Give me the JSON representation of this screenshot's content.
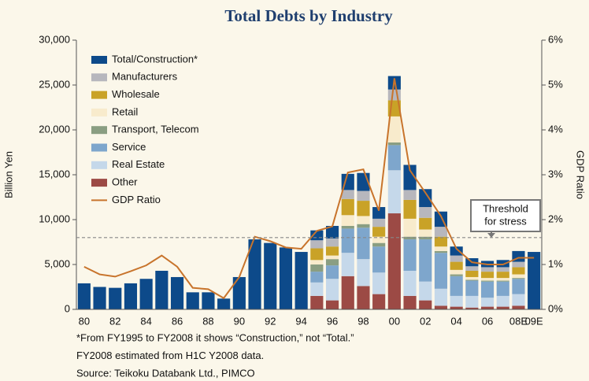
{
  "chart_data": {
    "type": "stacked_bar",
    "title": "Total Debts by Industry",
    "y_label": "Billion Yen",
    "y2_label": "GDP Ratio",
    "categories": [
      "80",
      null,
      "82",
      null,
      "84",
      null,
      "86",
      null,
      "88",
      null,
      "90",
      null,
      "92",
      null,
      "94",
      null,
      "96",
      null,
      "98",
      null,
      "00",
      null,
      "02",
      null,
      "04",
      null,
      "06",
      null,
      "08E",
      "09E"
    ],
    "series": [
      {
        "name": "Total/Construction*",
        "color": "#0d4a8a",
        "values": [
          2900,
          2500,
          2400,
          2900,
          3400,
          4300,
          3600,
          1900,
          1900,
          1200,
          3600,
          7800,
          7400,
          6900,
          6400,
          1100,
          1400,
          1800,
          2000,
          1300,
          1500,
          2800,
          2000,
          1700,
          1000,
          900,
          700,
          800,
          1200,
          6400
        ]
      },
      {
        "name": "Manufacturers",
        "color": "#b7b7bd",
        "values": [
          null,
          null,
          null,
          null,
          null,
          null,
          null,
          null,
          null,
          null,
          null,
          null,
          null,
          null,
          null,
          900,
          900,
          1000,
          1100,
          900,
          1200,
          1100,
          1200,
          1100,
          700,
          500,
          500,
          500,
          600,
          null
        ]
      },
      {
        "name": "Wholesale",
        "color": "#c9a227",
        "values": [
          null,
          null,
          null,
          null,
          null,
          null,
          null,
          null,
          null,
          null,
          null,
          null,
          null,
          null,
          null,
          1300,
          1000,
          1800,
          1700,
          1100,
          1800,
          2100,
          1300,
          1100,
          900,
          700,
          700,
          700,
          800,
          null
        ]
      },
      {
        "name": "Retail",
        "color": "#f8ebcc",
        "values": [
          null,
          null,
          null,
          null,
          null,
          null,
          null,
          null,
          null,
          null,
          null,
          null,
          null,
          null,
          null,
          500,
          400,
          1200,
          900,
          700,
          2900,
          2000,
          800,
          500,
          500,
          300,
          300,
          300,
          400,
          null
        ]
      },
      {
        "name": "Transport, Telecom",
        "color": "#8a9e82",
        "values": [
          null,
          null,
          null,
          null,
          null,
          null,
          null,
          null,
          null,
          null,
          null,
          null,
          null,
          null,
          null,
          800,
          700,
          300,
          400,
          400,
          300,
          300,
          300,
          200,
          200,
          100,
          100,
          100,
          100,
          null
        ]
      },
      {
        "name": "Service",
        "color": "#7ea6cc",
        "values": [
          null,
          null,
          null,
          null,
          null,
          null,
          null,
          null,
          null,
          null,
          null,
          null,
          null,
          null,
          null,
          1200,
          1500,
          2700,
          3500,
          2900,
          2800,
          3500,
          4700,
          4000,
          2200,
          1700,
          1800,
          1600,
          1700,
          null
        ]
      },
      {
        "name": "Real Estate",
        "color": "#c5d8ea",
        "values": [
          null,
          null,
          null,
          null,
          null,
          null,
          null,
          null,
          null,
          null,
          null,
          null,
          null,
          null,
          null,
          1500,
          2400,
          2600,
          3000,
          2400,
          4800,
          2800,
          2100,
          1900,
          1200,
          1300,
          1000,
          1200,
          1300,
          null
        ]
      },
      {
        "name": "Other",
        "color": "#9c4a45",
        "values": [
          null,
          null,
          null,
          null,
          null,
          null,
          null,
          null,
          null,
          null,
          null,
          null,
          null,
          null,
          null,
          1500,
          1000,
          3700,
          2600,
          1700,
          10700,
          1500,
          1000,
          400,
          300,
          200,
          300,
          300,
          400,
          null
        ]
      },
      {
        "name": "GDP Ratio",
        "color": "#c8742c",
        "type": "line",
        "axis": "y2",
        "values": [
          0.95,
          0.78,
          0.73,
          0.85,
          0.98,
          1.2,
          0.95,
          0.48,
          0.45,
          0.25,
          0.72,
          1.62,
          1.52,
          1.38,
          1.35,
          1.75,
          1.85,
          3.05,
          3.12,
          2.2,
          5.15,
          3.1,
          2.6,
          2.08,
          1.35,
          1.05,
          1.0,
          1.0,
          1.15,
          1.15
        ]
      }
    ],
    "ylim": [
      0,
      30000
    ],
    "yticks": [
      0,
      {
        "value": 5000,
        "label": "5,000"
      },
      {
        "value": 10000,
        "label": "10,000"
      },
      {
        "value": 15000,
        "label": "15,000"
      },
      {
        "value": 20000,
        "label": "20,000"
      },
      {
        "value": 25000,
        "label": "25,000"
      },
      {
        "value": 30000,
        "label": "30,000"
      }
    ],
    "y2lim": [
      0,
      6
    ],
    "y2ticks": [
      {
        "value": 0,
        "label": "0%"
      },
      {
        "value": 1,
        "label": "1%"
      },
      {
        "value": 2,
        "label": "2%"
      },
      {
        "value": 3,
        "label": "3%"
      },
      {
        "value": 4,
        "label": "4%"
      },
      {
        "value": 5,
        "label": "5%"
      },
      {
        "value": 6,
        "label": "6%"
      }
    ],
    "threshold": {
      "value": 8000,
      "label": [
        "Threshold",
        "for stress"
      ]
    },
    "legend": "upper left",
    "notes": [
      "*From FY1995 to FY2008 it shows “Construction,” not “Total.”",
      "FY2008 estimated from H1C Y2008 data.",
      "Source: Teikoku Databank Ltd., PIMCO"
    ]
  }
}
